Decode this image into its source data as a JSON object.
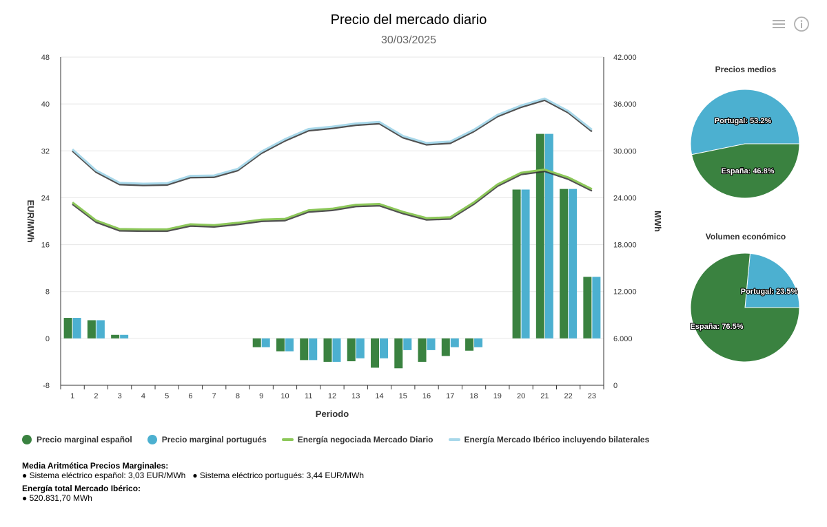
{
  "header": {
    "title": "Precio del mercado diario",
    "subtitle": "30/03/2025"
  },
  "icons": {
    "menu": "menu-icon",
    "info": "info-icon"
  },
  "colors": {
    "spain": "#3a8240",
    "portugal": "#4cb0d0",
    "energy_daily": "#8dc85a",
    "energy_iberian": "#a8d8ea",
    "shadow": "#333333",
    "grid": "#e6e6e6"
  },
  "chart_data": [
    {
      "type": "bar+line",
      "xlabel": "Periodo",
      "ylabel_left": "EUR/MWh",
      "ylabel_right": "MWh",
      "categories": [
        "1",
        "2",
        "3",
        "4",
        "5",
        "6",
        "7",
        "8",
        "9",
        "10",
        "11",
        "12",
        "13",
        "14",
        "15",
        "16",
        "17",
        "18",
        "19",
        "20",
        "21",
        "22",
        "23"
      ],
      "ylim_left": [
        -8,
        48
      ],
      "yticks_left": [
        "-8",
        "0",
        "8",
        "16",
        "24",
        "32",
        "40",
        "48"
      ],
      "ylim_right": [
        0,
        42000
      ],
      "yticks_right": [
        "0",
        "6.000",
        "12.000",
        "18.000",
        "24.000",
        "30.000",
        "36.000",
        "42.000"
      ],
      "grid": true,
      "bar_series": [
        {
          "name": "Precio marginal español",
          "values": [
            3.5,
            3.1,
            0.6,
            0,
            0,
            0,
            0,
            0,
            -1.5,
            -2.2,
            -3.7,
            -4.0,
            -3.9,
            -5.0,
            -5.1,
            -4.0,
            -3.0,
            -2.1,
            0,
            25.4,
            34.9,
            25.5,
            10.5
          ]
        },
        {
          "name": "Precio marginal portugués",
          "values": [
            3.5,
            3.1,
            0.6,
            0,
            0,
            0,
            0,
            0,
            -1.5,
            -2.2,
            -3.7,
            -4.0,
            -3.4,
            -3.4,
            -2.0,
            -2.0,
            -1.5,
            -1.5,
            0,
            25.4,
            34.9,
            25.5,
            10.5
          ]
        }
      ],
      "line_series": [
        {
          "name": "Energía negociada Mercado Diario",
          "values": [
            23400,
            21100,
            20000,
            19950,
            19950,
            20600,
            20500,
            20800,
            21200,
            21300,
            22400,
            22600,
            23100,
            23200,
            22200,
            21400,
            21500,
            23400,
            25700,
            27200,
            27600,
            26600,
            25100
          ]
        },
        {
          "name": "Energía Mercado Ibérico incluyendo bilaterales",
          "values": [
            30200,
            27500,
            25900,
            25800,
            25850,
            26800,
            26850,
            27700,
            29900,
            31500,
            32800,
            33100,
            33500,
            33700,
            31900,
            31000,
            31200,
            32700,
            34600,
            35800,
            36700,
            35100,
            32700
          ]
        }
      ]
    },
    {
      "type": "pie",
      "title": "Precios medios",
      "slices": [
        {
          "label": "Portugal: 53.2%",
          "value": 53.2
        },
        {
          "label": "España: 46.8%",
          "value": 46.8
        }
      ]
    },
    {
      "type": "pie",
      "title": "Volumen económico",
      "slices": [
        {
          "label": "Portugal: 23.5%",
          "value": 23.5
        },
        {
          "label": "España: 76.5%",
          "value": 76.5
        }
      ]
    }
  ],
  "legend": [
    {
      "label": "Precio marginal español"
    },
    {
      "label": "Precio marginal portugués"
    },
    {
      "label": "Energía negociada Mercado Diario"
    },
    {
      "label": "Energía Mercado Ibérico incluyendo bilaterales"
    }
  ],
  "summary": {
    "heading1": "Media Aritmética Precios Marginales:",
    "line1": "● Sistema eléctrico español: 3,03 EUR/MWh   ● Sistema eléctrico portugués: 3,44 EUR/MWh",
    "heading2": "Energía total Mercado Ibérico:",
    "line2": "● 520.831,70 MWh"
  }
}
